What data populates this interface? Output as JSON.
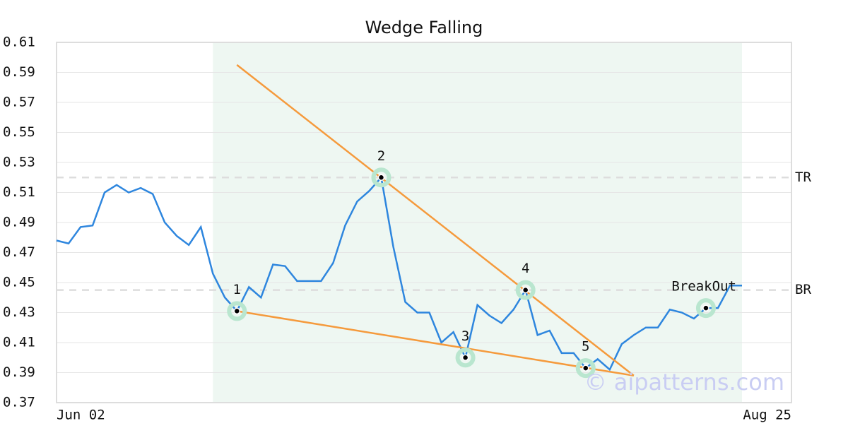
{
  "chart_data": {
    "type": "line",
    "title": "Wedge Falling",
    "categories": [
      "Jun 02",
      null,
      null,
      null,
      null,
      null,
      null,
      null,
      null,
      null,
      null,
      null,
      null,
      null,
      null,
      null,
      null,
      null,
      null,
      null,
      null,
      null,
      null,
      null,
      null,
      null,
      null,
      null,
      null,
      null,
      null,
      null,
      null,
      null,
      null,
      null,
      null,
      null,
      null,
      null,
      null,
      null,
      null,
      null,
      null,
      null,
      null,
      null,
      null,
      null,
      null,
      null,
      null,
      null,
      null,
      null,
      null,
      "Aug 25"
    ],
    "values": [
      0.478,
      0.476,
      0.487,
      0.488,
      0.51,
      0.515,
      0.51,
      0.513,
      0.509,
      0.49,
      0.481,
      0.475,
      0.487,
      0.456,
      0.44,
      0.431,
      0.447,
      0.44,
      0.462,
      0.461,
      0.451,
      0.451,
      0.451,
      0.463,
      0.488,
      0.504,
      0.511,
      0.52,
      0.474,
      0.437,
      0.43,
      0.43,
      0.41,
      0.417,
      0.4,
      0.435,
      0.428,
      0.423,
      0.432,
      0.445,
      0.415,
      0.418,
      0.403,
      0.403,
      0.393,
      0.399,
      0.392,
      0.409,
      0.415,
      0.42,
      0.42,
      0.432,
      0.43,
      0.426,
      0.433,
      0.433,
      0.448,
      0.448
    ],
    "color": "#2e86de",
    "ylim": [
      0.37,
      0.61
    ],
    "yticks": [
      0.37,
      0.39,
      0.41,
      0.43,
      0.45,
      0.47,
      0.49,
      0.51,
      0.53,
      0.55,
      0.57,
      0.59,
      0.61
    ],
    "grid": true,
    "pattern_range": [
      13,
      57
    ],
    "pattern_points": [
      {
        "label": "1",
        "x": 15,
        "value": 0.431
      },
      {
        "label": "2",
        "x": 27,
        "value": 0.52
      },
      {
        "label": "3",
        "x": 34,
        "value": 0.4
      },
      {
        "label": "4",
        "x": 39,
        "value": 0.445
      },
      {
        "label": "5",
        "x": 44,
        "value": 0.393
      },
      {
        "label": "BreakOut",
        "x": 54,
        "value": 0.433
      }
    ],
    "trendlines": [
      {
        "x": [
          15,
          48
        ],
        "y": [
          0.595,
          0.388
        ]
      },
      {
        "x": [
          15,
          48
        ],
        "y": [
          0.431,
          0.388
        ]
      }
    ],
    "trendline_color": "#f59a3c",
    "levels": [
      {
        "label": "TR",
        "value": 0.52
      },
      {
        "label": "BR",
        "value": 0.445
      }
    ],
    "watermark": "© aipatterns.com"
  }
}
